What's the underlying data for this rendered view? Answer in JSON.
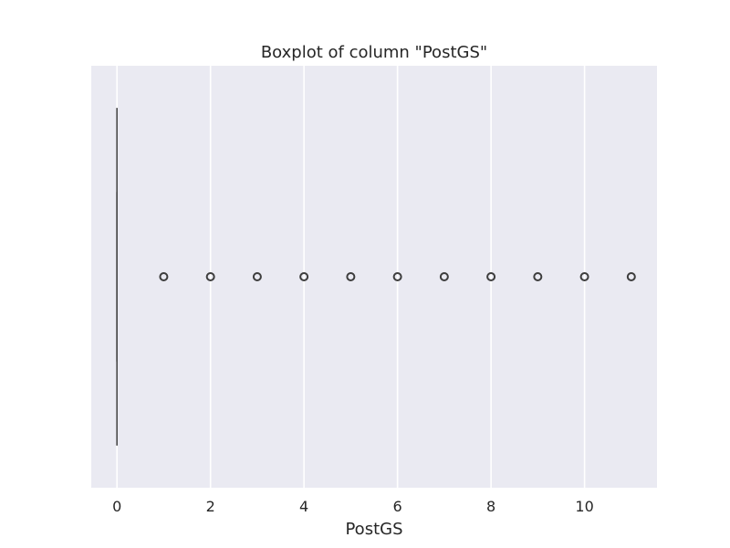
{
  "chart_data": {
    "type": "boxplot",
    "orientation": "horizontal",
    "title": "Boxplot of column \"PostGS\"",
    "xlabel": "PostGS",
    "ylabel": "",
    "xlim": [
      -0.55,
      11.55
    ],
    "xticks": [
      0,
      2,
      4,
      6,
      8,
      10
    ],
    "grid": true,
    "box": {
      "q1": 0,
      "median": 0,
      "q3": 0,
      "whisker_low": 0,
      "whisker_high": 0
    },
    "outliers": [
      1,
      2,
      3,
      4,
      5,
      6,
      7,
      8,
      9,
      10,
      11
    ],
    "colors": {
      "plot_background": "#eaeaf2",
      "grid": "#ffffff",
      "box_line": "#4c4c4c",
      "outlier_edge": "#3d3d3d",
      "text": "#262626"
    }
  }
}
